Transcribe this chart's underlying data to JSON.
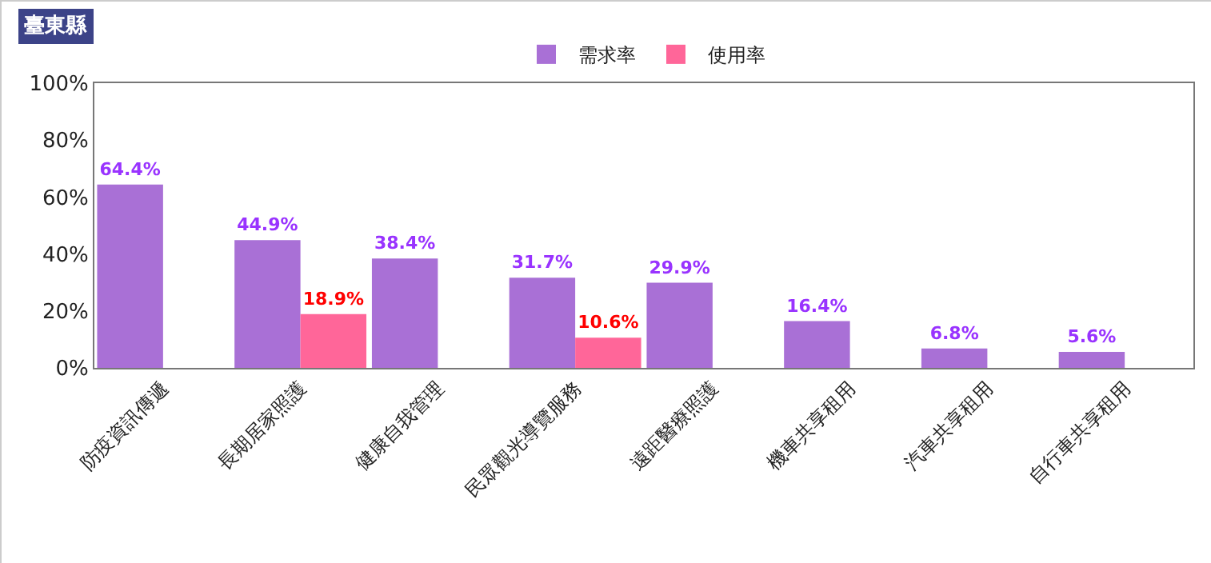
{
  "chart_data": {
    "type": "bar",
    "title": "臺東縣",
    "categories": [
      "防疫資訊傳遞",
      "長期居家照護",
      "健康自我管理",
      "民眾觀光導覽服務",
      "遠距醫療照護",
      "機車共享租用",
      "汽車共享租用",
      "自行車共享租用"
    ],
    "series": [
      {
        "name": "需求率",
        "color": "#a970d6",
        "values": [
          64.4,
          44.9,
          38.4,
          31.7,
          29.9,
          16.4,
          6.8,
          5.6
        ],
        "value_labels": [
          "64.4%",
          "44.9%",
          "38.4%",
          "31.7%",
          "29.9%",
          "16.4%",
          "6.8%",
          "5.6%"
        ]
      },
      {
        "name": "使用率",
        "color": "#ff6699",
        "values": [
          null,
          18.9,
          null,
          10.6,
          null,
          null,
          null,
          null
        ],
        "value_labels": [
          null,
          "18.9%",
          null,
          "10.6%",
          null,
          null,
          null,
          null
        ]
      }
    ],
    "ylim": [
      0,
      100
    ],
    "yticks": [
      {
        "value": 0,
        "label": "0%"
      },
      {
        "value": 20,
        "label": "20%"
      },
      {
        "value": 40,
        "label": "40%"
      },
      {
        "value": 60,
        "label": "60%"
      },
      {
        "value": 80,
        "label": "80%"
      },
      {
        "value": 100,
        "label": "100%"
      }
    ],
    "grid": false,
    "legend": "top"
  }
}
